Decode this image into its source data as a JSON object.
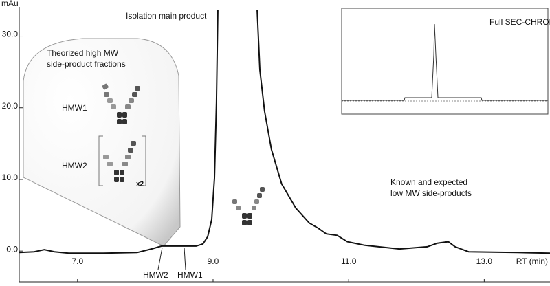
{
  "chart_data": {
    "type": "line",
    "y_label": "mAu",
    "x_label": "RT (min)",
    "annotations": [
      "Isolation main product",
      "Theorized high MW",
      "side-product fractions",
      "HMW1",
      "HMW2",
      "x2",
      "Known and expected",
      "low MW side-products",
      "HMW2",
      "HMW1",
      "Full SEC-CHROM"
    ],
    "xlim": [
      6.14,
      13.97
    ],
    "ylim": [
      -4.3,
      33.6
    ],
    "xticks": [
      {
        "value": 7,
        "label": "7.0"
      },
      {
        "value": 9,
        "label": "9.0"
      },
      {
        "value": 11,
        "label": "11.0"
      },
      {
        "value": 13,
        "label": "13.0"
      }
    ],
    "yticks": [
      {
        "value": 0,
        "label": "0.0"
      },
      {
        "value": 10,
        "label": "10.0"
      },
      {
        "value": 20,
        "label": "20.0"
      },
      {
        "value": 30,
        "label": "30.0"
      }
    ],
    "series": [
      {
        "color": "#111111",
        "x": [
          6.14,
          6.36,
          6.51,
          6.66,
          6.87,
          7.38,
          7.88,
          8.09,
          8.24,
          8.49,
          8.75,
          8.85,
          8.92,
          8.98,
          9.02,
          9.05,
          9.07,
          9.35,
          9.65,
          9.69,
          9.76,
          9.86,
          10.01,
          10.22,
          10.42,
          10.55,
          10.67,
          10.83,
          10.98,
          11.24,
          11.75,
          12.16,
          12.31,
          12.47,
          12.57,
          12.77,
          13.49,
          13.97
        ],
        "values": [
          -0.2,
          -0.1,
          0.2,
          -0.1,
          -0.3,
          -0.3,
          -0.2,
          0.3,
          0.7,
          0.7,
          0.7,
          1.0,
          2.0,
          4.4,
          10.2,
          20.8,
          33.6,
          null,
          33.6,
          25.3,
          19.5,
          14.2,
          9.4,
          6.0,
          3.9,
          3.2,
          2.4,
          2.2,
          1.3,
          0.8,
          0.3,
          0.6,
          1.1,
          1.3,
          0.6,
          -0.1,
          -0.2,
          -0.3
        ]
      }
    ]
  }
}
